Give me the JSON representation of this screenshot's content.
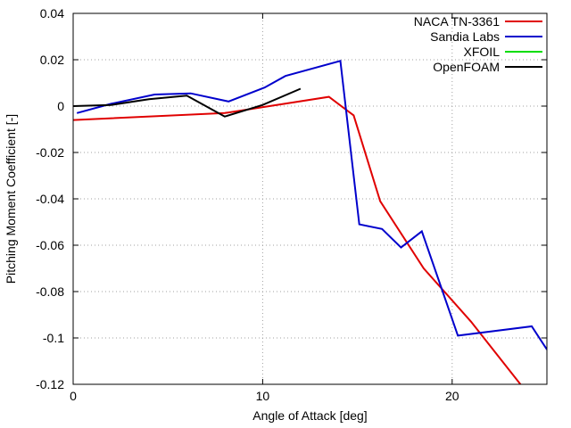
{
  "chart_data": {
    "type": "line",
    "title": "",
    "xlabel": "Angle of Attack [deg]",
    "ylabel": "Pitching Moment Coefficient [-]",
    "xlim": [
      0,
      25
    ],
    "ylim": [
      -0.12,
      0.04
    ],
    "xticks": [
      0,
      10,
      20
    ],
    "yticks": [
      0.04,
      0.02,
      0,
      -0.02,
      -0.04,
      -0.06,
      -0.08,
      -0.1,
      -0.12
    ],
    "xtick_labels": [
      "0",
      "10",
      "20"
    ],
    "ytick_labels": [
      "0.04",
      "0.02",
      "0",
      "-0.02",
      "-0.04",
      "-0.06",
      "-0.08",
      "-0.1",
      "-0.12"
    ],
    "grid": true,
    "legend_position": "top-right",
    "series": [
      {
        "name": "NACA TN-3361",
        "color": "#e00000",
        "x": [
          0,
          8,
          13.5,
          14.8,
          16.2,
          18.5,
          21,
          23.7
        ],
        "y": [
          -0.006,
          -0.003,
          0.004,
          -0.004,
          -0.041,
          -0.07,
          -0.093,
          -0.121
        ]
      },
      {
        "name": "Sandia Labs",
        "color": "#0000cc",
        "x": [
          0.2,
          2,
          4.3,
          6.2,
          8.2,
          10.1,
          11.2,
          14.1,
          15.1,
          16.3,
          17.3,
          18.4,
          20.3,
          24.2,
          25
        ],
        "y": [
          -0.003,
          0.001,
          0.005,
          0.0055,
          0.002,
          0.008,
          0.013,
          0.0195,
          -0.051,
          -0.053,
          -0.061,
          -0.054,
          -0.099,
          -0.095,
          -0.105
        ]
      },
      {
        "name": "XFOIL",
        "color": "#00dd00",
        "x": [],
        "y": []
      },
      {
        "name": "OpenFOAM",
        "color": "#000000",
        "x": [
          0,
          2,
          4,
          6,
          8,
          10,
          12
        ],
        "y": [
          0,
          0.0005,
          0.003,
          0.0045,
          -0.0045,
          0.0005,
          0.0075
        ]
      }
    ]
  }
}
